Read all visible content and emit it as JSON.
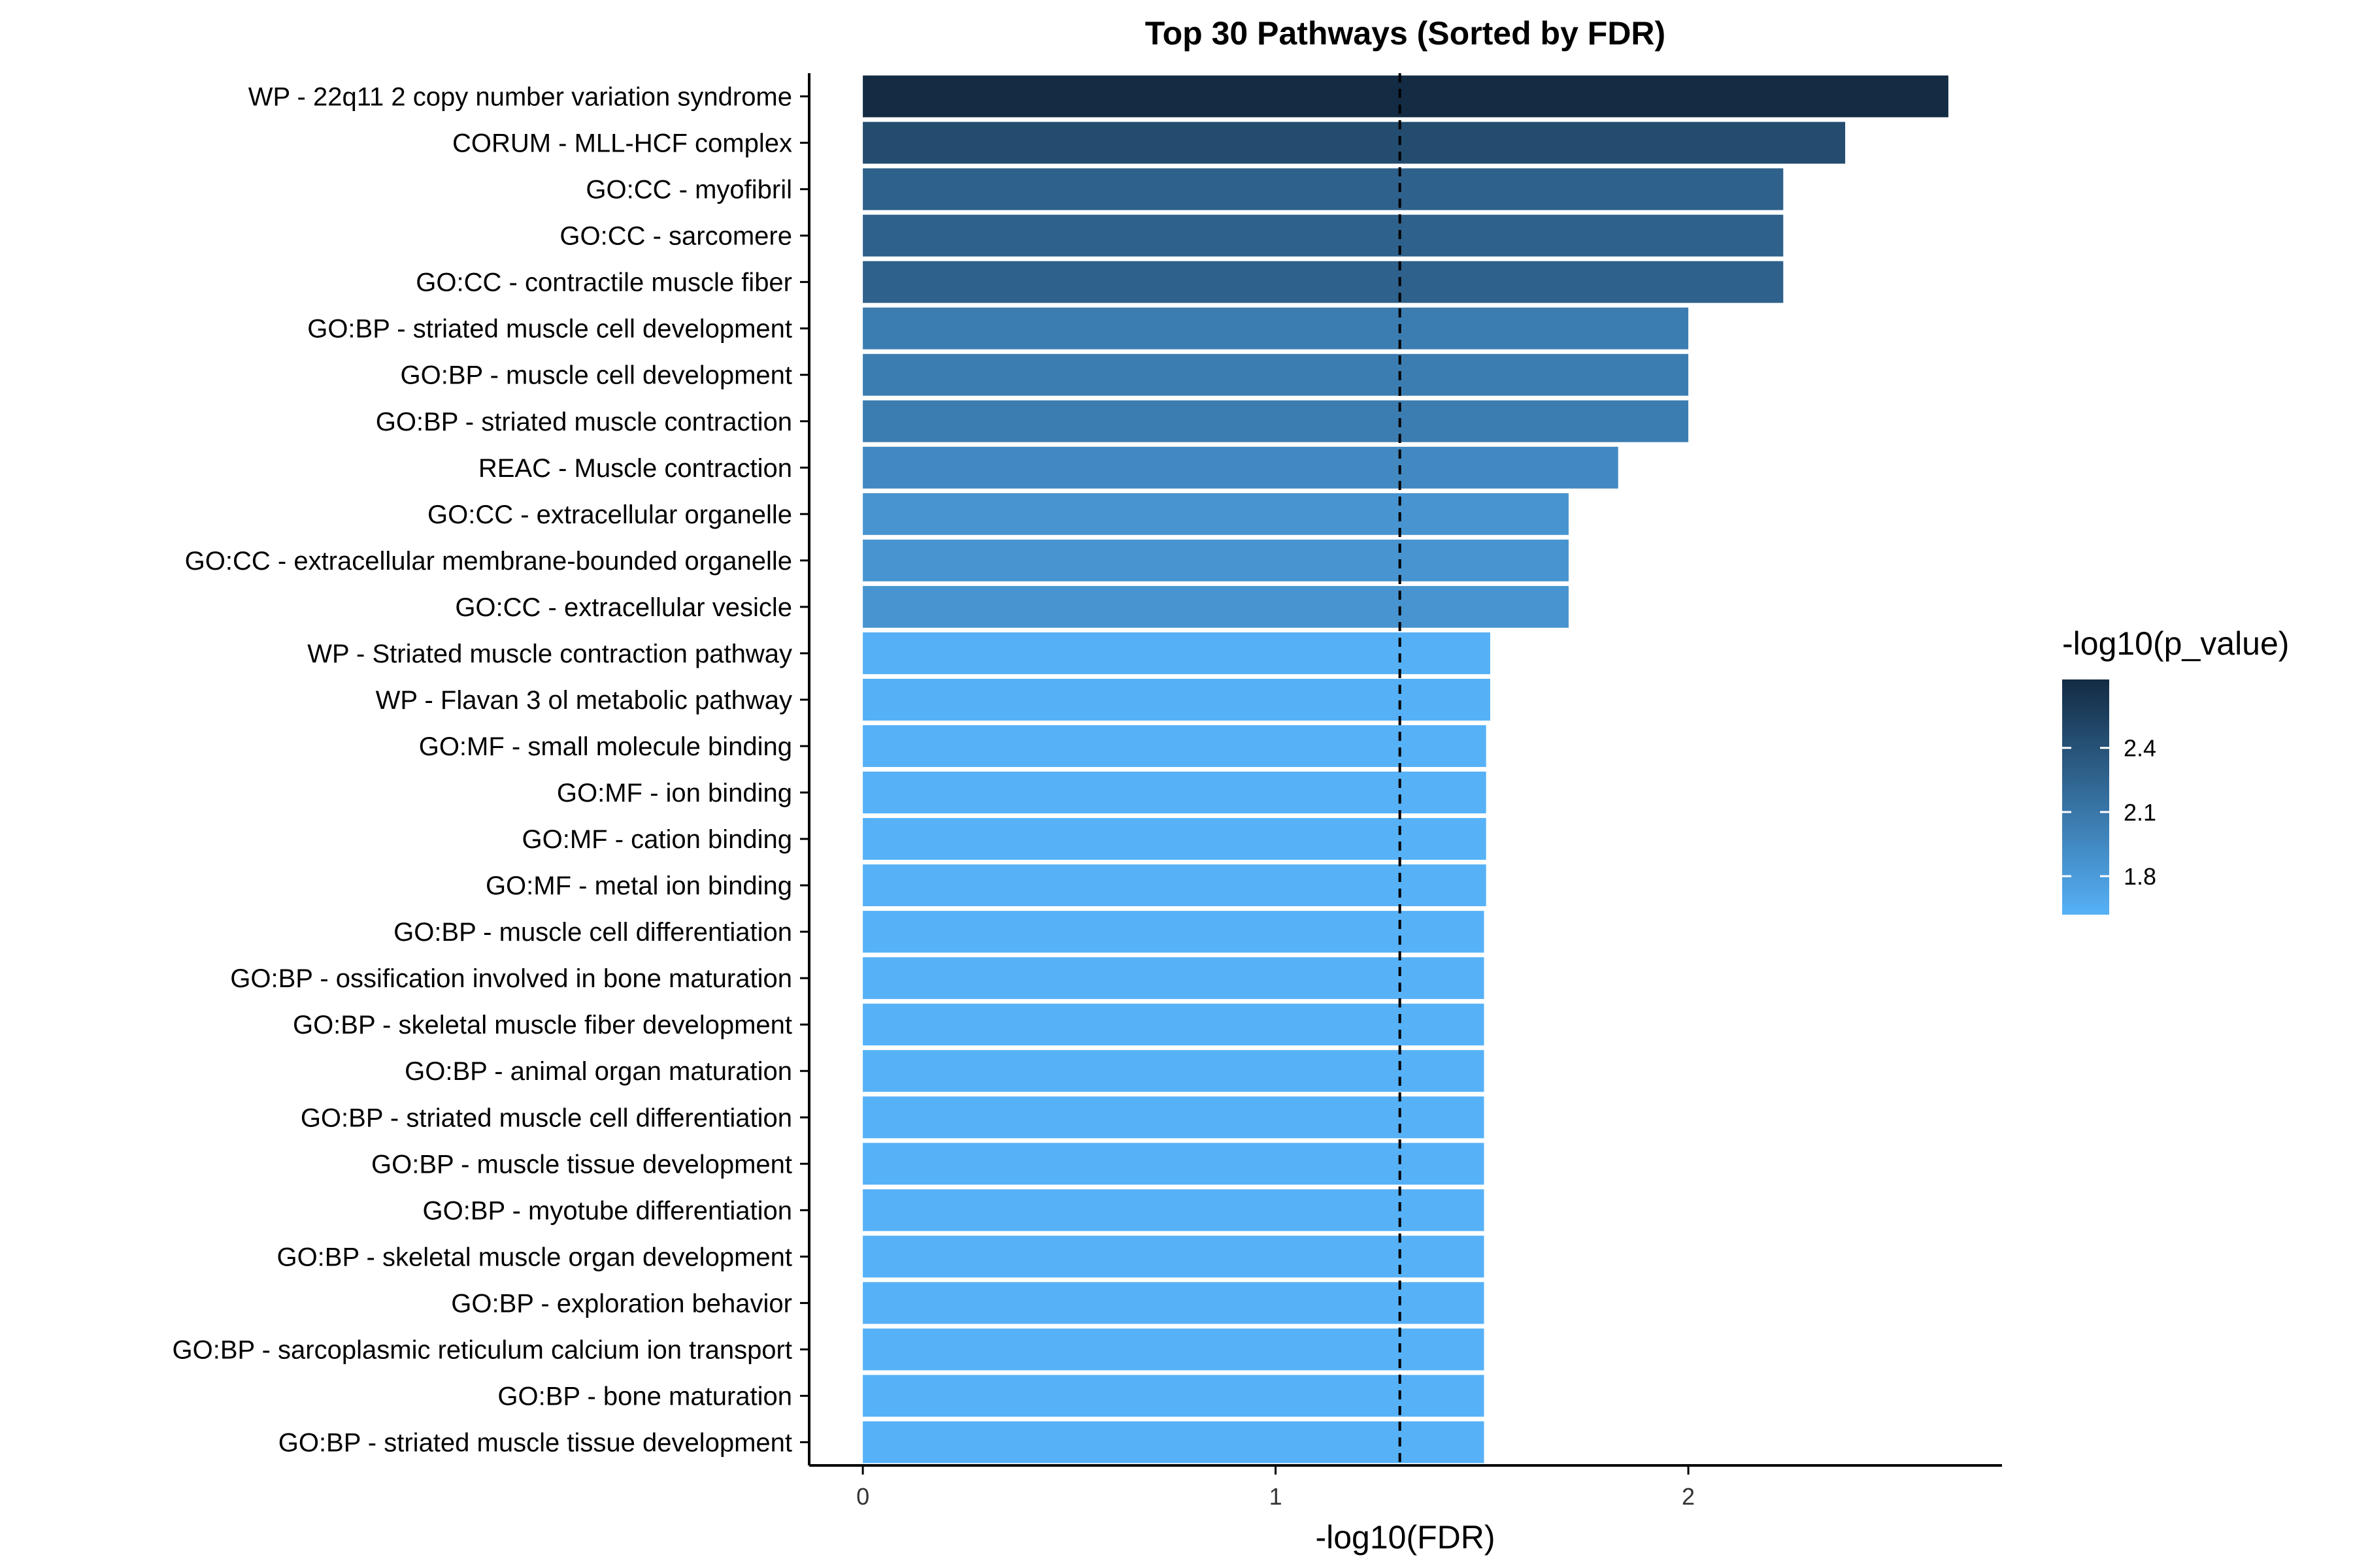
{
  "chart_data": {
    "type": "bar",
    "orientation": "horizontal",
    "title": "Top 30 Pathways (Sorted by FDR)",
    "xlabel": "-log10(FDR)",
    "ylabel": "",
    "xlim": [
      -0.13,
      2.76
    ],
    "x_ticks": [
      0,
      1,
      2
    ],
    "x_tick_labels": [
      "0",
      "1",
      "2"
    ],
    "reference_line": {
      "x": 1.30103,
      "style": "dashed"
    },
    "categories": [
      "WP - 22q11 2 copy number variation syndrome",
      "CORUM - MLL-HCF complex",
      "GO:CC - myofibril",
      "GO:CC - sarcomere",
      "GO:CC - contractile muscle fiber",
      "GO:BP - striated muscle cell development",
      "GO:BP - muscle cell development",
      "GO:BP - striated muscle contraction",
      "REAC - Muscle contraction",
      "GO:CC - extracellular organelle",
      "GO:CC - extracellular membrane-bounded organelle",
      "GO:CC - extracellular vesicle",
      "WP - Striated muscle contraction pathway",
      "WP - Flavan 3 ol metabolic pathway",
      "GO:MF - small molecule binding",
      "GO:MF - ion binding",
      "GO:MF - cation binding",
      "GO:MF - metal ion binding",
      "GO:BP - muscle cell differentiation",
      "GO:BP - ossification involved in bone maturation",
      "GO:BP - skeletal muscle fiber development",
      "GO:BP - animal organ maturation",
      "GO:BP - striated muscle cell differentiation",
      "GO:BP - muscle tissue development",
      "GO:BP - myotube differentiation",
      "GO:BP - skeletal muscle organ development",
      "GO:BP - exploration behavior",
      "GO:BP - sarcoplasmic reticulum calcium ion transport",
      "GO:BP - bone maturation",
      "GO:BP - striated muscle tissue development"
    ],
    "series": [
      {
        "values": [
          2.63,
          2.38,
          2.23,
          2.23,
          2.23,
          2.0,
          2.0,
          2.0,
          1.83,
          1.71,
          1.71,
          1.71,
          1.52,
          1.52,
          1.51,
          1.51,
          1.51,
          1.51,
          1.505,
          1.505,
          1.505,
          1.505,
          1.505,
          1.505,
          1.505,
          1.505,
          1.505,
          1.505,
          1.505,
          1.505
        ],
        "color_values": [
          2.72,
          2.45,
          2.28,
          2.28,
          2.28,
          2.05,
          2.05,
          2.05,
          1.95,
          1.86,
          1.86,
          1.86,
          1.63,
          1.63,
          1.62,
          1.62,
          1.62,
          1.62,
          1.62,
          1.62,
          1.62,
          1.62,
          1.62,
          1.62,
          1.62,
          1.62,
          1.62,
          1.62,
          1.62,
          1.62
        ]
      }
    ],
    "legend": {
      "title": "-log10(p_value)",
      "type": "colorbar",
      "position": "right",
      "range": [
        1.62,
        2.72
      ],
      "ticks": [
        2.4,
        2.1,
        1.8
      ],
      "tick_labels": [
        "2.4",
        "2.1",
        "1.8"
      ],
      "color_low": "#56B1F7",
      "color_high": "#132B43"
    },
    "grid": false
  }
}
